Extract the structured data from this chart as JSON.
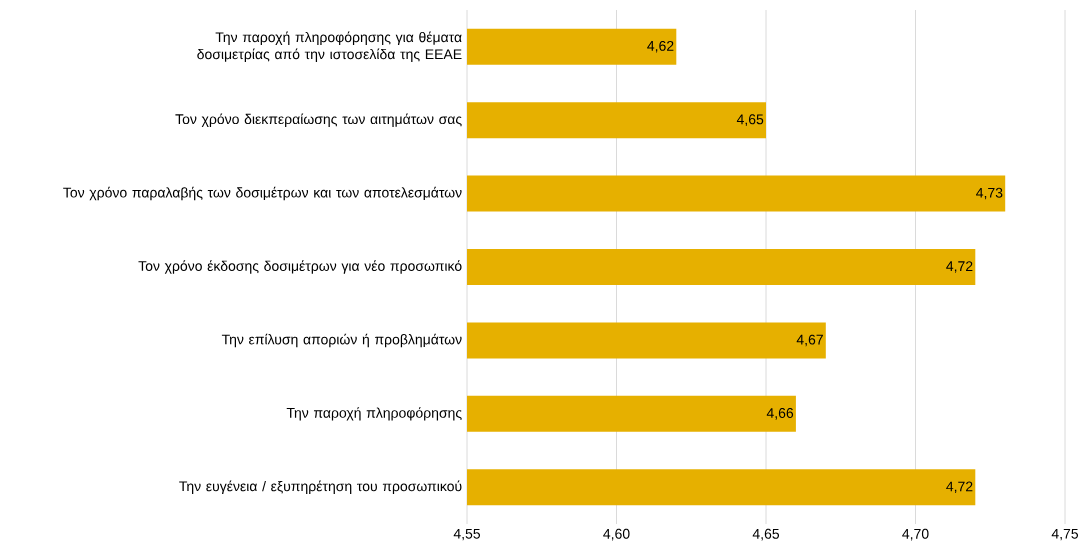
{
  "chart_data": {
    "type": "bar",
    "orientation": "horizontal",
    "categories": [
      "Την παροχή πληροφόρησης για θέματα δοσιμετρίας από την ιστοσελίδα της ΕΕΑΕ",
      "Τον χρόνο διεκπεραίωσης των αιτημάτων σας",
      "Τον χρόνο παραλαβής των δοσιμέτρων και των αποτελεσμάτων",
      "Τον χρόνο έκδοσης δοσιμέτρων για νέο προσωπικό",
      "Την επίλυση αποριών ή προβλημάτων",
      "Την παροχή πληροφόρησης",
      "Την ευγένεια / εξυπηρέτηση του προσωπικού"
    ],
    "values": [
      4.62,
      4.65,
      4.73,
      4.72,
      4.67,
      4.66,
      4.72
    ],
    "value_labels": [
      "4,62",
      "4,65",
      "4,73",
      "4,72",
      "4,67",
      "4,66",
      "4,72"
    ],
    "color": "#e6b000",
    "xlim": [
      4.55,
      4.75
    ],
    "xticks": [
      {
        "value": 4.55,
        "label": "4,55"
      },
      {
        "value": 4.6,
        "label": "4,60"
      },
      {
        "value": 4.65,
        "label": "4,65"
      },
      {
        "value": 4.7,
        "label": "4,70"
      },
      {
        "value": 4.75,
        "label": "4,75"
      }
    ],
    "grid": "x"
  }
}
